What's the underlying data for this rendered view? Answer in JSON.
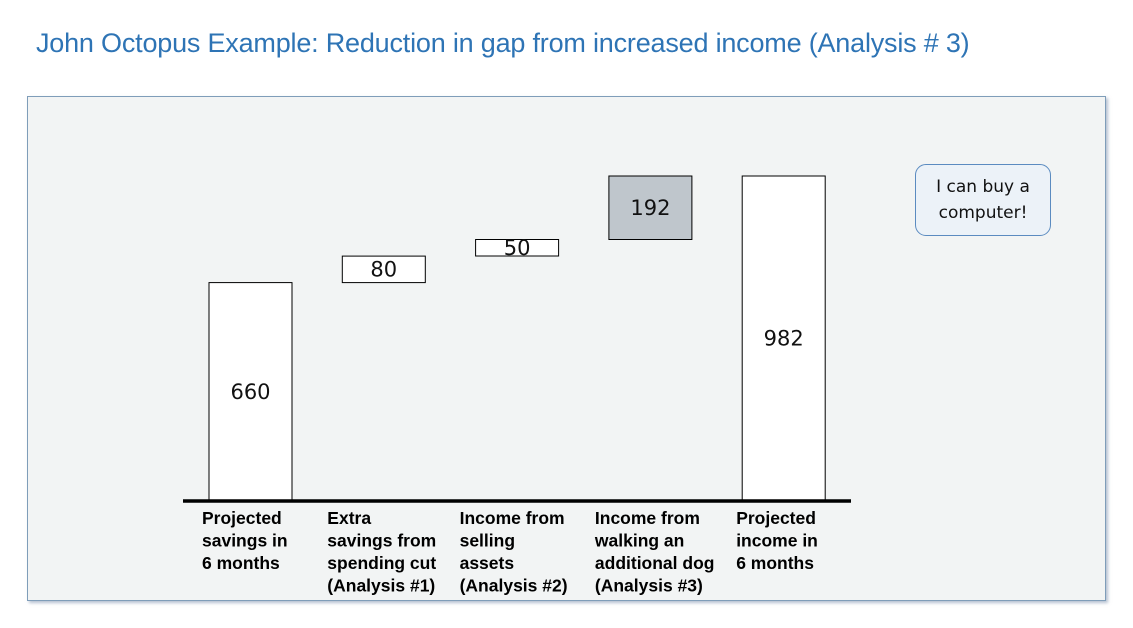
{
  "title": "John Octopus Example: Reduction in gap from increased income (Analysis # 3)",
  "callout": {
    "text": "I can buy a computer!"
  },
  "colors": {
    "title": "#2E74B5",
    "panel_bg": "#F2F4F4",
    "bar_fill": "#FFFFFF",
    "highlight_fill": "#BFC6CC",
    "bar_stroke": "#000000",
    "callout_border": "#5B8BC0"
  },
  "chart_data": {
    "type": "bar",
    "variant": "waterfall",
    "title": "",
    "xlabel": "",
    "ylabel": "",
    "ylim": [
      0,
      982
    ],
    "grid": false,
    "legend": "none",
    "categories": [
      [
        "Projected",
        "savings in",
        "6 months"
      ],
      [
        "Extra",
        "savings from",
        "spending cut",
        "(Analysis #1)"
      ],
      [
        "Income from",
        "selling",
        "assets",
        "(Analysis #2)"
      ],
      [
        "Income from",
        "walking an",
        "additional dog",
        "(Analysis #3)"
      ],
      [
        "Projected",
        "income in",
        "6 months"
      ]
    ],
    "bars": [
      {
        "label": "660",
        "start": 0,
        "end": 660,
        "kind": "total",
        "highlight": false
      },
      {
        "label": "80",
        "start": 660,
        "end": 740,
        "kind": "increment",
        "highlight": false
      },
      {
        "label": "50",
        "start": 740,
        "end": 790,
        "kind": "increment",
        "highlight": false
      },
      {
        "label": "192",
        "start": 790,
        "end": 982,
        "kind": "increment",
        "highlight": true
      },
      {
        "label": "982",
        "start": 0,
        "end": 982,
        "kind": "total",
        "highlight": false
      }
    ]
  }
}
